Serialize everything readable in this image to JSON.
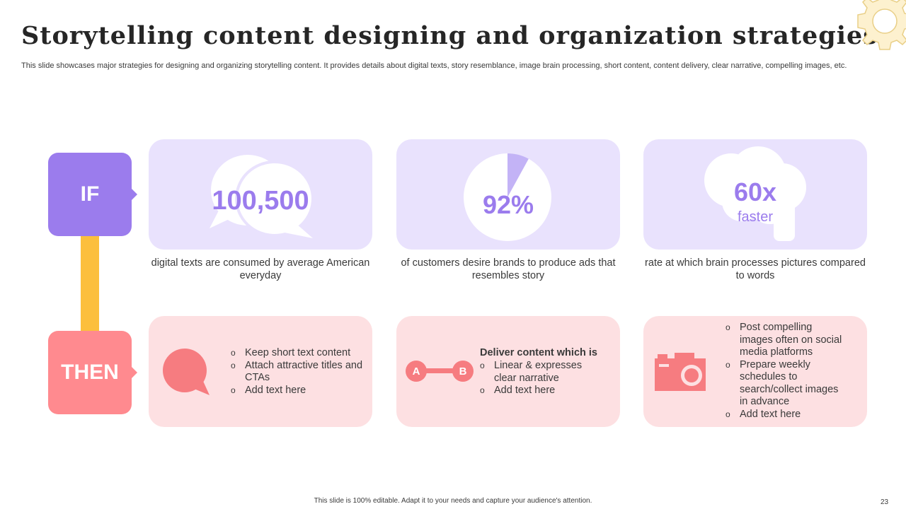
{
  "slide": {
    "title": "Storytelling content designing and organization strategies",
    "subtitle": "This slide showcases major strategies for designing and organizing storytelling content. It provides details about digital texts, story resemblance, image brain processing, short content, content delivery, clear narrative, compelling images, etc.",
    "footer": "This slide is 100% editable. Adapt it to your needs and capture your audience's attention.",
    "page_number": "23"
  },
  "labels": {
    "if": "IF",
    "then": "THEN"
  },
  "if_cards": [
    {
      "icon": "speech-bubbles-icon",
      "stat": "100,500",
      "caption": "digital texts are consumed by average American everyday"
    },
    {
      "icon": "pie-chart-icon",
      "stat": "92%",
      "caption": "of customers desire brands to produce ads that resembles story",
      "pie_fraction": 0.08
    },
    {
      "icon": "brain-head-icon",
      "stat": "60x",
      "stat_sub": "faster",
      "caption": "rate at which brain processes pictures compared to words"
    }
  ],
  "then_cards": [
    {
      "icon": "chat-bubble-icon",
      "bullets": [
        "Keep short text content",
        "Attach attractive titles and CTAs",
        "Add text here"
      ]
    },
    {
      "icon": "a-to-b-icon",
      "icon_letters": [
        "A",
        "B"
      ],
      "heading": "Deliver content which is",
      "bullets": [
        "Linear & expresses clear narrative",
        "Add text here"
      ]
    },
    {
      "icon": "camera-icon",
      "bullets": [
        "Post compelling images often on social media platforms",
        "Prepare weekly schedules to search/collect images in advance",
        "Add text here"
      ]
    }
  ],
  "colors": {
    "purple": "#9b7ced",
    "light_purple": "#e9e2fd",
    "pink": "#ff8a8f",
    "light_pink": "#fde0e2",
    "yellow": "#fcbf3c",
    "icon_pink": "#f67c80"
  }
}
